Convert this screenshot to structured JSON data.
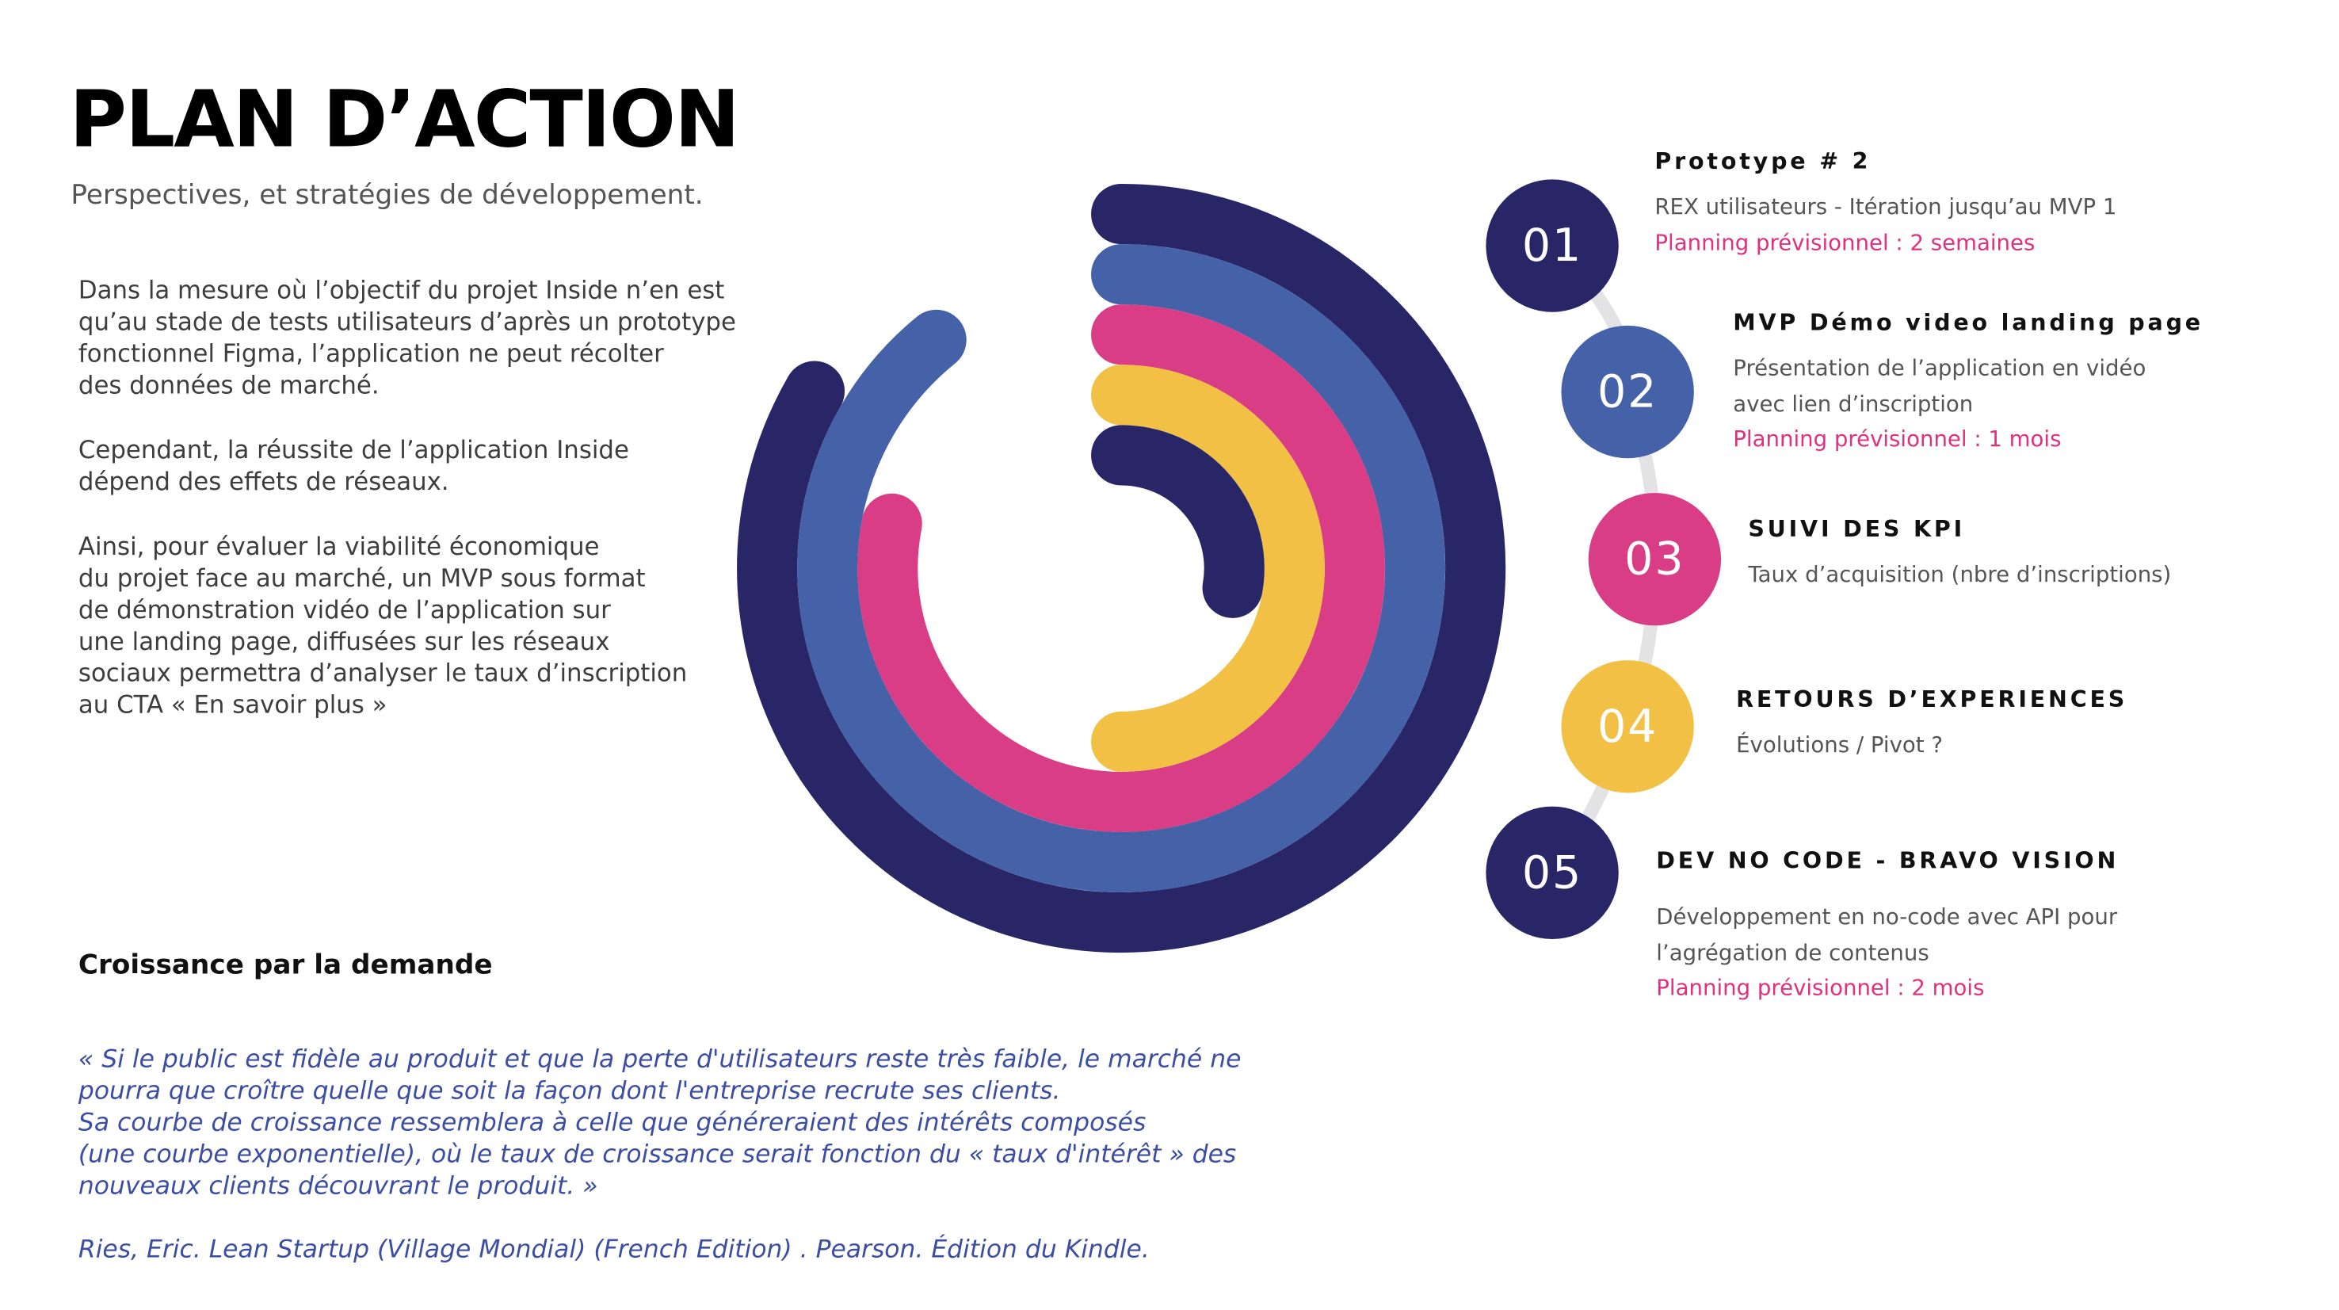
{
  "header": {
    "title": "PLAN D’ACTION",
    "subtitle": "Perspectives, et stratégies de développement."
  },
  "body_paragraphs": [
    "Dans la mesure où l’objectif du projet Inside n’en est\nqu’au stade de tests utilisateurs d’après un prototype\nfonctionnel Figma, l’application ne peut récolter\ndes données de marché.",
    "Cependant, la réussite de l’application Inside\ndépend des effets de réseaux.",
    "Ainsi, pour évaluer la viabilité économique\ndu projet face au marché, un MVP sous format\nde démonstration vidéo de l’application sur\nune landing page, diffusées sur les réseaux\nsociaux permettra d’analyser le taux d’inscription\nau CTA « En savoir plus »"
  ],
  "growth": {
    "heading": "Croissance par la demande",
    "quote": "« Si le public est fidèle au produit et que la perte d'utilisateurs reste très faible, le marché ne\npourra que croître quelle que soit la façon dont l'entreprise recrute ses clients.\nSa courbe de croissance ressemblera à celle que généreraient des intérêts composés\n(une courbe exponentielle), où le taux de croissance serait fonction du « taux d'intérêt » des\nnouveaux clients découvrant le produit. »",
    "citation": "Ries, Eric. Lean Startup (Village Mondial) (French Edition) . Pearson. Édition du Kindle."
  },
  "colors": {
    "navy": "#292667",
    "blue": "#4561a8",
    "pink": "#d93d86",
    "yellow": "#f2c045",
    "planning_text": "#e0307e",
    "connector": "#e3e3e5"
  },
  "rings": [
    {
      "color": "#292667",
      "sweep_degrees": 300
    },
    {
      "color": "#4561a8",
      "sweep_degrees": 321
    },
    {
      "color": "#d93d86",
      "sweep_degrees": 281
    },
    {
      "color": "#f2c045",
      "sweep_degrees": 180
    },
    {
      "color": "#292667",
      "sweep_degrees": 100
    }
  ],
  "steps": [
    {
      "number": "01",
      "color": "#292667",
      "title": "Prototype # 2",
      "desc": "REX utilisateurs - Itération jusqu’au MVP 1",
      "plan": "Planning prévisionnel : 2 semaines"
    },
    {
      "number": "02",
      "color": "#4561a8",
      "title": "MVP Démo video landing page",
      "desc": "Présentation de l’application en vidéo\navec lien d’inscription",
      "plan": "Planning prévisionnel : 1 mois"
    },
    {
      "number": "03",
      "color": "#d93d86",
      "title": "SUIVI DES KPI",
      "desc": "Taux d’acquisition (nbre d’inscriptions)",
      "plan": null
    },
    {
      "number": "04",
      "color": "#f2c045",
      "title": "RETOURS D’EXPERIENCES",
      "desc": "Évolutions / Pivot ?",
      "plan": null
    },
    {
      "number": "05",
      "color": "#292667",
      "title": "DEV NO CODE - BRAVO VISION",
      "desc": "Développement en no-code avec API pour\nl’agrégation de contenus",
      "plan": "Planning prévisionnel : 2 mois"
    }
  ]
}
